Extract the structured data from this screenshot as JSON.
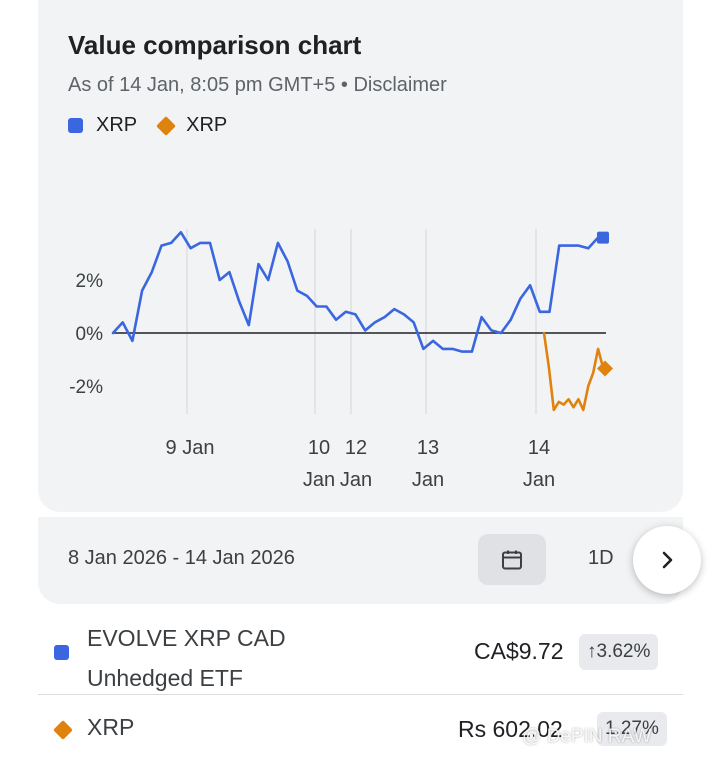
{
  "header": {
    "title": "Value comparison chart",
    "subtitle": "As of 14 Jan, 8:05 pm GMT+5 • Disclaimer"
  },
  "legend": [
    {
      "label": "XRP",
      "shape": "square",
      "color": "#3a66e0"
    },
    {
      "label": "XRP",
      "shape": "diamond",
      "color": "#e0820e"
    }
  ],
  "chart_data": {
    "type": "line",
    "y_ticks": [
      "2%",
      "0%",
      "-2%"
    ],
    "x_ticks": [
      {
        "lines": [
          "9 Jan"
        ]
      },
      {
        "lines": [
          "10",
          "Jan"
        ]
      },
      {
        "lines": [
          "12",
          "Jan"
        ]
      },
      {
        "lines": [
          "13",
          "Jan"
        ]
      },
      {
        "lines": [
          "14",
          "Jan"
        ]
      }
    ],
    "ylim": [
      -3.0,
      4.2
    ],
    "grid": true,
    "series": [
      {
        "name": "XRP",
        "color": "#3a66e0",
        "end_marker": "square",
        "values": [
          0.0,
          0.4,
          -0.3,
          1.6,
          2.3,
          3.3,
          3.4,
          3.8,
          3.2,
          3.4,
          3.4,
          2.0,
          2.3,
          1.2,
          0.3,
          2.6,
          2.0,
          3.4,
          2.7,
          1.6,
          1.4,
          1.0,
          1.0,
          0.5,
          0.8,
          0.7,
          0.1,
          0.4,
          0.6,
          0.9,
          0.7,
          0.4,
          -0.6,
          -0.3,
          -0.6,
          -0.6,
          -0.7,
          -0.7,
          0.6,
          0.1,
          0.0,
          0.5,
          1.3,
          1.8,
          0.8,
          0.8,
          3.3,
          3.3,
          3.3,
          3.2,
          3.6
        ]
      },
      {
        "name": "XRP",
        "color": "#e0820e",
        "end_marker": "diamond",
        "values": [
          0.0,
          -1.3,
          -2.9,
          -2.6,
          -2.7,
          -2.5,
          -2.8,
          -2.5,
          -2.9,
          -2.0,
          -1.5,
          -0.6,
          -1.3
        ]
      }
    ]
  },
  "range": {
    "text": "8 Jan 2026 - 14 Jan 2026",
    "period": "1D"
  },
  "assets": [
    {
      "name": "EVOLVE XRP CAD Unhedged ETF",
      "price": "CA$9.72",
      "change": "↑3.62%",
      "color": "#3a66e0"
    },
    {
      "name": "XRP",
      "price": "Rs 602.02",
      "change": "1.27%",
      "color": "#e0820e"
    }
  ],
  "watermark": "@ DePIN RAW"
}
